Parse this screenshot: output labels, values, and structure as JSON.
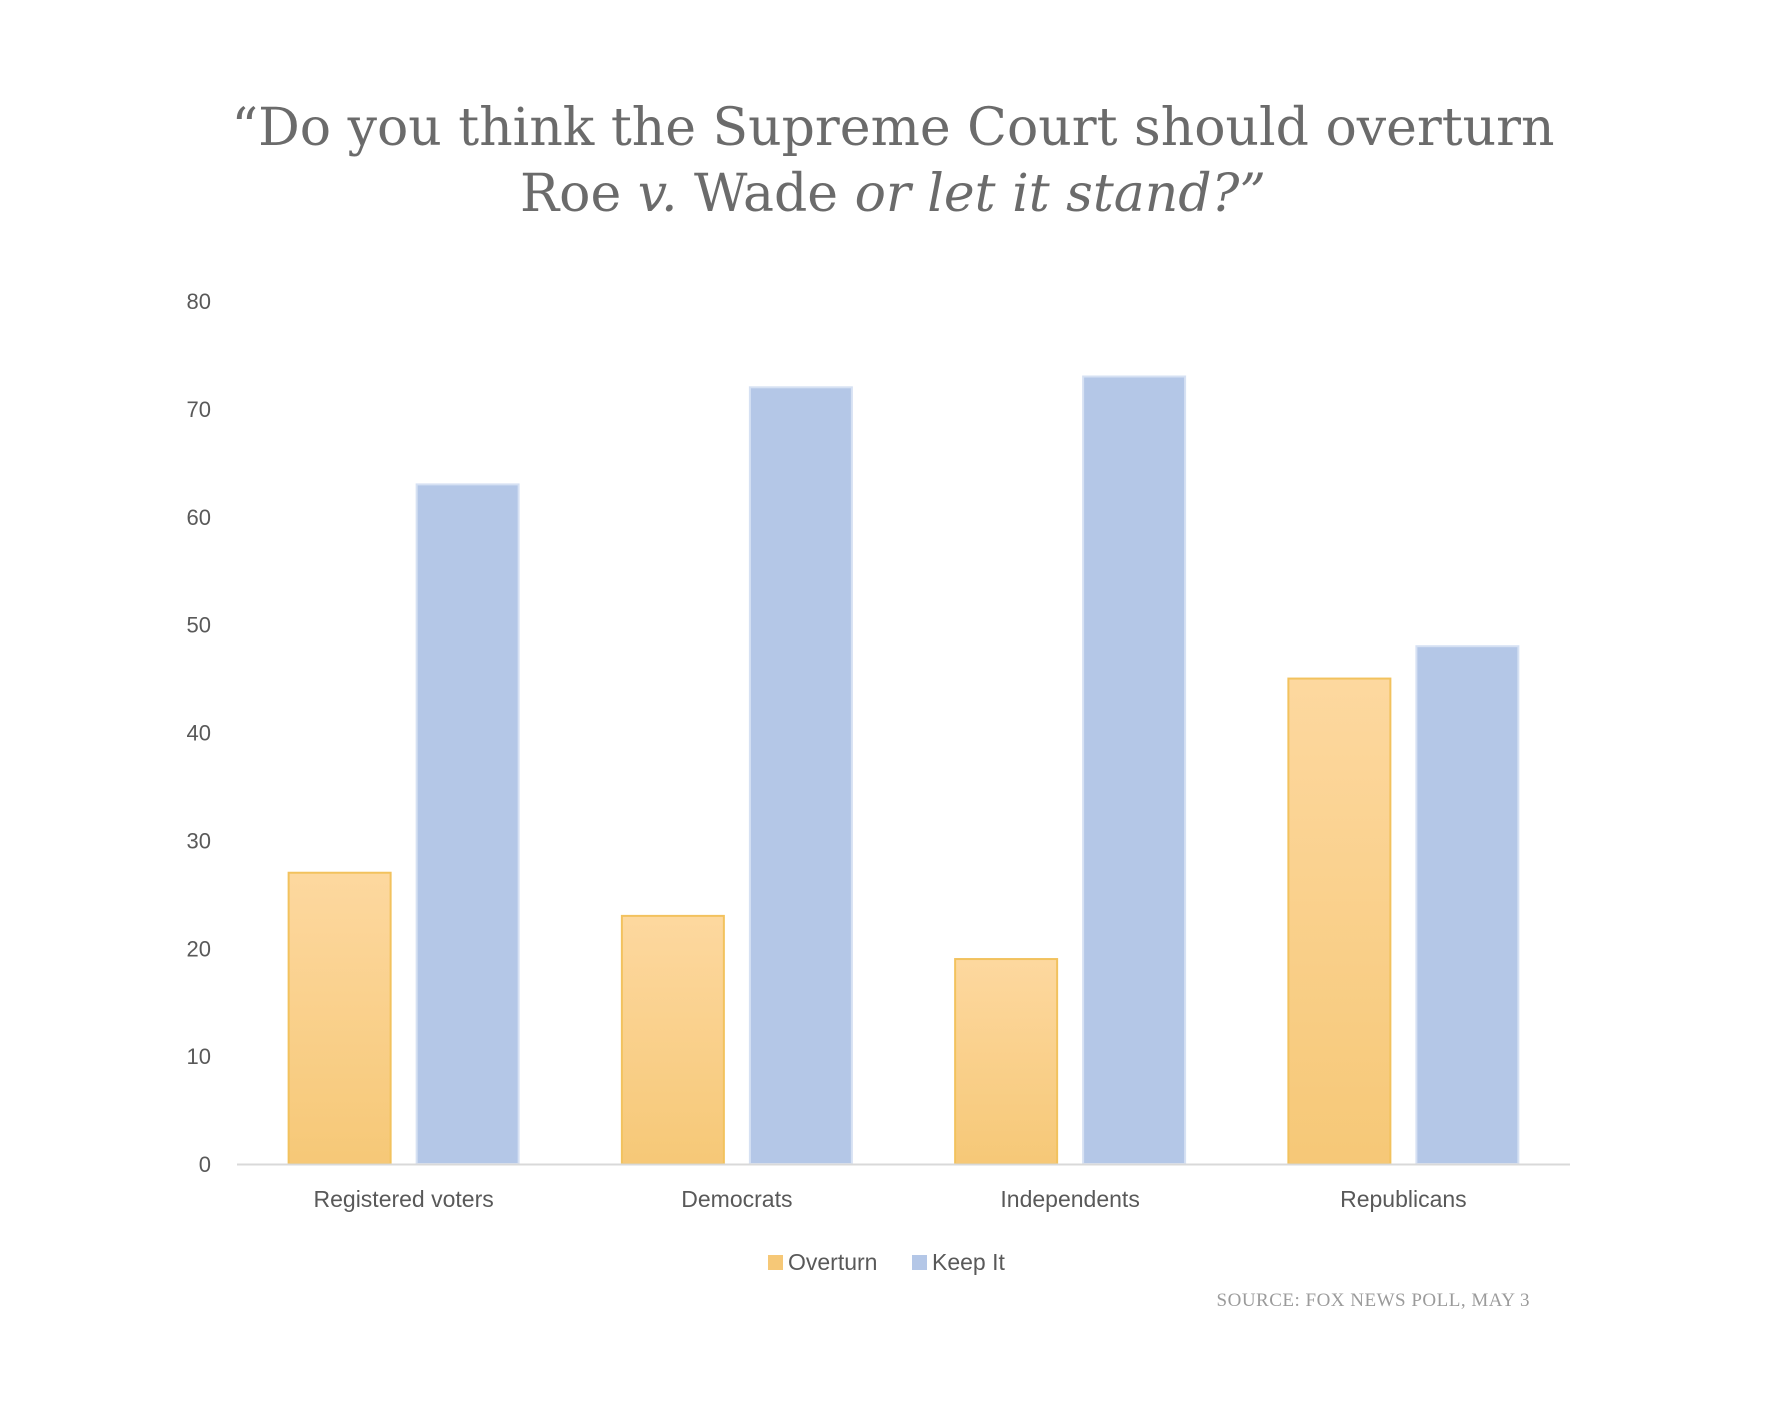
{
  "title": {
    "line1": "“Do you think the Supreme Court should overturn",
    "line2_roe": "Roe",
    "line2_v": "v.",
    "line2_wade": "Wade",
    "line2_rest": "or let it stand?”"
  },
  "source": "SOURCE: FOX NEWS POLL, MAY 3",
  "colors": {
    "overturn_top": "#fdd89f",
    "overturn_bottom": "#f6c877",
    "overturn_edge": "#f2c25e",
    "keep": "#b4c7e7",
    "keep_edge": "#d6e1f3",
    "axis": "#d9d9d9"
  },
  "chart_data": {
    "type": "bar",
    "title": "“Do you think the Supreme Court should overturn Roe v. Wade or let it stand?”",
    "categories": [
      "Registered voters",
      "Democrats",
      "Independents",
      "Republicans"
    ],
    "series": [
      {
        "name": "Overturn",
        "values": [
          27,
          23,
          19,
          45
        ]
      },
      {
        "name": "Keep It",
        "values": [
          63,
          72,
          73,
          48
        ]
      }
    ],
    "ylim": [
      0,
      80
    ],
    "yticks": [
      "0",
      "10",
      "20",
      "30",
      "40",
      "50",
      "60",
      "70",
      "80"
    ],
    "xlabel": "",
    "ylabel": "",
    "grid": false,
    "legend": "bottom"
  }
}
